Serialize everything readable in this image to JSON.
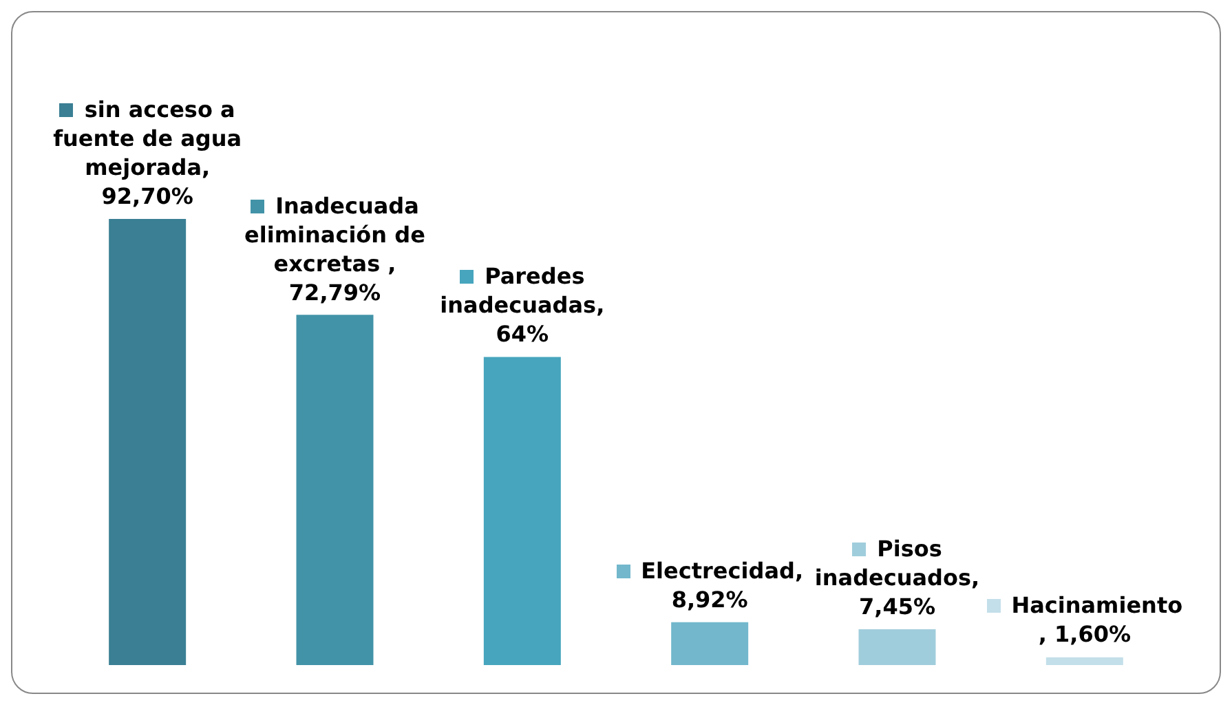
{
  "chart_data": {
    "type": "bar",
    "categories": [
      null,
      null,
      null,
      null,
      null,
      null
    ],
    "values": [
      92.7,
      72.79,
      64,
      8.92,
      7.45,
      1.6
    ],
    "colors": [
      "#3a7f94",
      "#4293a8",
      "#47a5bd",
      "#72b7cc",
      "#a0cddc",
      "#c3dfe9"
    ],
    "value_labels": [
      "sin acceso a fuente de agua mejorada, 92,70%",
      "Inadecuada eliminación de excretas , 72,79%",
      "Paredes inadecuadas, 64%",
      "Electrecidad, 8,92%",
      "Pisos inadecuados, 7,45%",
      "Hacinamiento , 1,60%"
    ]
  }
}
